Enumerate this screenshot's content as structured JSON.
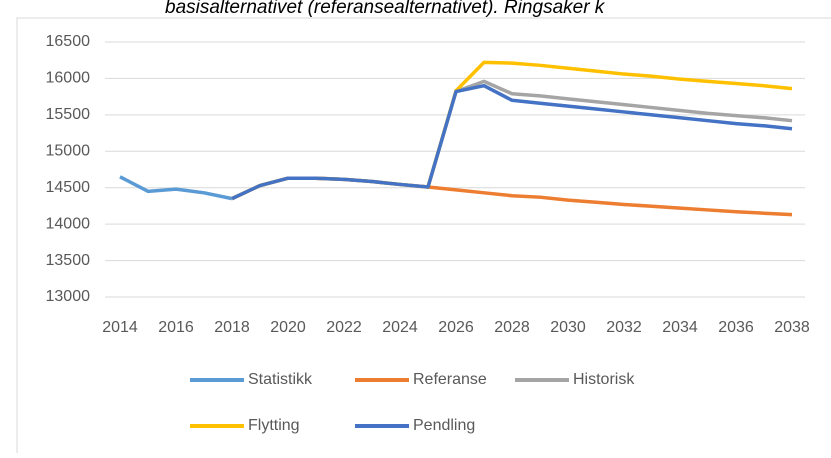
{
  "chart_data": {
    "type": "line",
    "title": "basisalternativet (referansealternativet). Ringsaker k",
    "x": [
      2014,
      2015,
      2016,
      2017,
      2018,
      2019,
      2020,
      2021,
      2022,
      2023,
      2024,
      2025,
      2026,
      2027,
      2028,
      2029,
      2030,
      2031,
      2032,
      2033,
      2034,
      2035,
      2036,
      2037,
      2038
    ],
    "xlim": [
      2014,
      2038
    ],
    "xticks": [
      2014,
      2016,
      2018,
      2020,
      2022,
      2024,
      2026,
      2028,
      2030,
      2032,
      2034,
      2036,
      2038
    ],
    "ylim": [
      13000,
      16500
    ],
    "yticks": [
      13000,
      13500,
      14000,
      14500,
      15000,
      15500,
      16000,
      16500
    ],
    "grid": true,
    "legend": "bottom",
    "series": [
      {
        "name": "Statistikk",
        "color": "#5b9bd5",
        "values": [
          14650,
          14450,
          14480,
          14430,
          14350,
          null,
          null,
          null,
          null,
          null,
          null,
          null,
          null,
          null,
          null,
          null,
          null,
          null,
          null,
          null,
          null,
          null,
          null,
          null,
          null
        ]
      },
      {
        "name": "Referanse",
        "color": "#ed7d31",
        "values": [
          null,
          null,
          null,
          null,
          14350,
          14530,
          14630,
          14630,
          14615,
          14585,
          14545,
          14510,
          14470,
          14430,
          14390,
          14370,
          14330,
          14300,
          14270,
          14245,
          14220,
          14195,
          14170,
          14150,
          14130
        ]
      },
      {
        "name": "Historisk",
        "color": "#a5a5a5",
        "values": [
          null,
          null,
          null,
          null,
          14350,
          14530,
          14630,
          14630,
          14615,
          14585,
          14545,
          14510,
          15820,
          15960,
          15790,
          15760,
          15720,
          15680,
          15640,
          15600,
          15560,
          15520,
          15490,
          15460,
          15420
        ]
      },
      {
        "name": "Flytting",
        "color": "#ffc000",
        "values": [
          null,
          null,
          null,
          null,
          14350,
          14530,
          14630,
          14630,
          14615,
          14585,
          14545,
          14510,
          15830,
          16220,
          16210,
          16180,
          16140,
          16100,
          16060,
          16030,
          15990,
          15960,
          15930,
          15900,
          15860
        ]
      },
      {
        "name": "Pendling",
        "color": "#4472c4",
        "values": [
          null,
          null,
          null,
          null,
          14350,
          14530,
          14630,
          14630,
          14615,
          14585,
          14545,
          14510,
          15820,
          15900,
          15700,
          15660,
          15620,
          15580,
          15540,
          15500,
          15460,
          15420,
          15380,
          15350,
          15310
        ]
      }
    ]
  }
}
